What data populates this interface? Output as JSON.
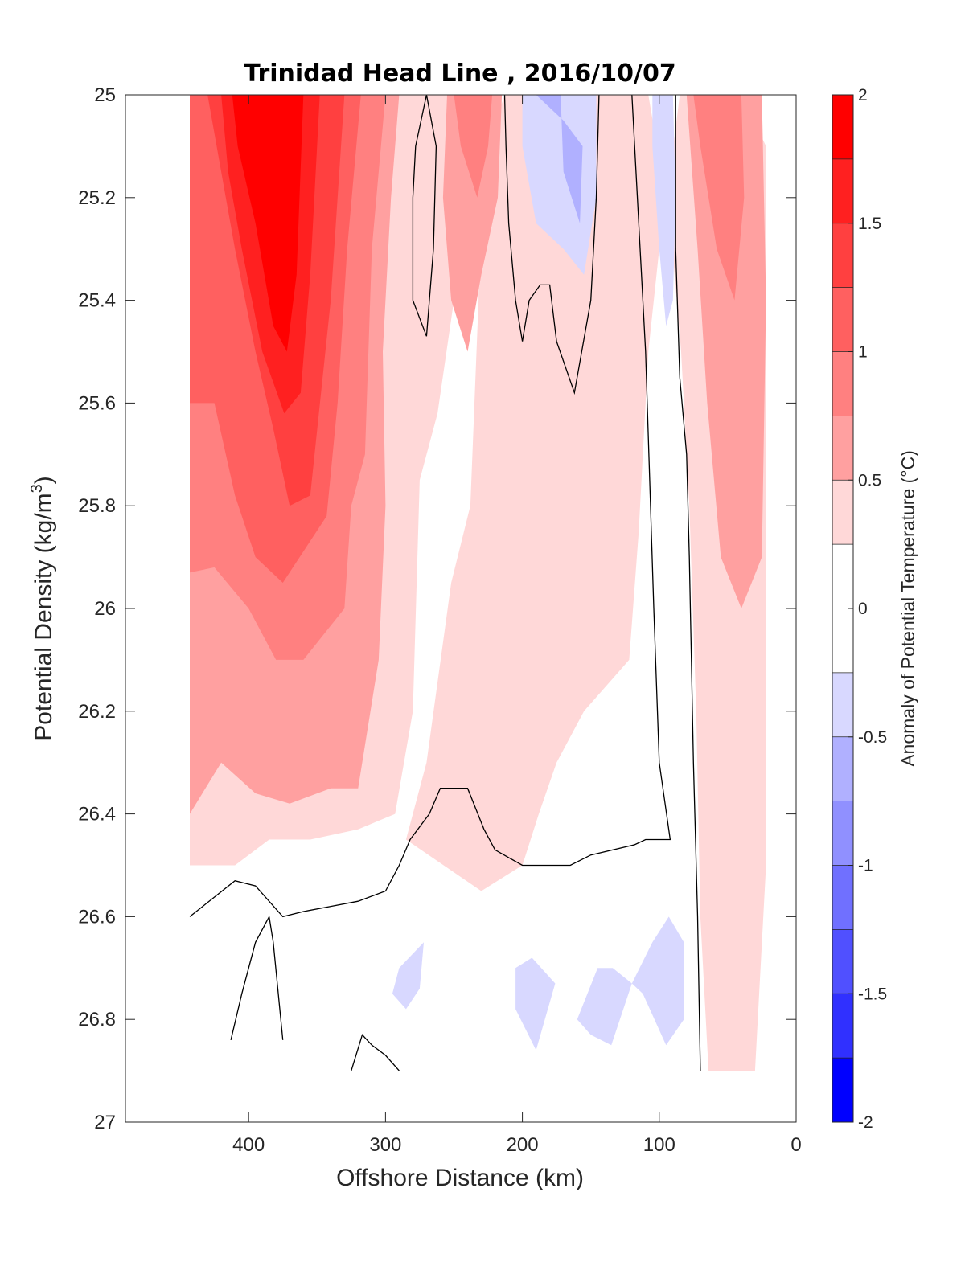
{
  "chart_data": {
    "type": "contour",
    "title": "Trinidad Head Line , 2016/10/07",
    "xlabel": "Offshore Distance (km)",
    "ylabel_main": "Potential Density (kg/m",
    "ylabel_sup": "3",
    "ylabel_close": ")",
    "xlim": [
      490,
      0
    ],
    "ylim": [
      27,
      25
    ],
    "x_ticks": [
      "400",
      "300",
      "200",
      "100",
      "0"
    ],
    "x_tick_values": [
      400,
      300,
      200,
      100,
      0
    ],
    "y_ticks": [
      "25",
      "25.2",
      "25.4",
      "25.6",
      "25.8",
      "26",
      "26.2",
      "26.4",
      "26.6",
      "26.8",
      "27"
    ],
    "y_tick_values": [
      25,
      25.2,
      25.4,
      25.6,
      25.8,
      26,
      26.2,
      26.4,
      26.6,
      26.8,
      27
    ],
    "colorbar": {
      "label": "Anomaly of Potential Temperature (°C)",
      "range": [
        -2,
        2
      ],
      "tick_labels": [
        "2",
        "1.5",
        "1",
        "0.5",
        "0",
        "-0.5",
        "-1",
        "-1.5",
        "-2"
      ],
      "tick_values": [
        2,
        1.5,
        1,
        0.5,
        0,
        -0.5,
        -1,
        -1.5,
        -2
      ],
      "levels": [
        {
          "from": 1.75,
          "to": 2.0,
          "color": "#ff0000"
        },
        {
          "from": 1.5,
          "to": 1.75,
          "color": "#ff2020"
        },
        {
          "from": 1.25,
          "to": 1.5,
          "color": "#ff4040"
        },
        {
          "from": 1.0,
          "to": 1.25,
          "color": "#ff6060"
        },
        {
          "from": 0.75,
          "to": 1.0,
          "color": "#ff8080"
        },
        {
          "from": 0.5,
          "to": 0.75,
          "color": "#ffa0a0"
        },
        {
          "from": 0.25,
          "to": 0.5,
          "color": "#ffd8d8"
        },
        {
          "from": -0.25,
          "to": 0.25,
          "color": "#ffffff"
        },
        {
          "from": -0.5,
          "to": -0.25,
          "color": "#d8d8ff"
        },
        {
          "from": -0.75,
          "to": -0.5,
          "color": "#b0b0ff"
        },
        {
          "from": -1.0,
          "to": -0.75,
          "color": "#9090ff"
        },
        {
          "from": -1.25,
          "to": -1.0,
          "color": "#7070ff"
        },
        {
          "from": -1.5,
          "to": -1.25,
          "color": "#5050ff"
        },
        {
          "from": -1.75,
          "to": -1.5,
          "color": "#3030ff"
        },
        {
          "from": -2.0,
          "to": -1.75,
          "color": "#0000ff"
        }
      ]
    },
    "grid": false,
    "filled_regions": [
      {
        "level": 0.25,
        "color": "#ffd8d8",
        "points": [
          [
            443,
            25
          ],
          [
            240,
            25
          ],
          [
            232,
            25.1
          ],
          [
            232,
            25.4
          ],
          [
            238,
            25.8
          ],
          [
            252,
            25.95
          ],
          [
            270,
            26.3
          ],
          [
            285,
            26.45
          ],
          [
            230,
            26.55
          ],
          [
            200,
            26.5
          ],
          [
            188,
            26.4
          ],
          [
            175,
            26.3
          ],
          [
            155,
            26.2
          ],
          [
            122,
            26.1
          ],
          [
            115,
            25.85
          ],
          [
            108,
            25.5
          ],
          [
            100,
            25.3
          ],
          [
            92,
            25.15
          ],
          [
            85,
            25
          ],
          [
            60,
            25
          ],
          [
            40,
            25
          ],
          [
            22,
            25.1
          ],
          [
            22,
            25.6
          ],
          [
            22,
            26.0
          ],
          [
            22,
            26.5
          ],
          [
            30,
            26.9
          ],
          [
            64,
            26.9
          ],
          [
            70,
            26.6
          ],
          [
            73,
            26.2
          ],
          [
            78,
            25.8
          ],
          [
            84,
            25.5
          ],
          [
            92,
            25.25
          ],
          [
            108,
            25
          ],
          [
            213,
            25
          ],
          [
            225,
            25.1
          ],
          [
            250,
            25.4
          ],
          [
            262,
            25.62
          ],
          [
            275,
            25.75
          ],
          [
            280,
            26.2
          ],
          [
            293,
            26.4
          ],
          [
            320,
            26.43
          ],
          [
            355,
            26.45
          ],
          [
            385,
            26.45
          ],
          [
            410,
            26.5
          ],
          [
            443,
            26.5
          ]
        ]
      },
      {
        "level": 0.5,
        "color": "#ffa0a0",
        "points": [
          [
            443,
            25
          ],
          [
            290,
            25
          ],
          [
            296,
            25.2
          ],
          [
            302,
            25.5
          ],
          [
            300,
            25.8
          ],
          [
            305,
            26.1
          ],
          [
            320,
            26.35
          ],
          [
            340,
            26.35
          ],
          [
            370,
            26.38
          ],
          [
            395,
            26.36
          ],
          [
            420,
            26.3
          ],
          [
            443,
            26.4
          ]
        ]
      },
      {
        "level": 0.5,
        "color": "#ffa0a0",
        "points": [
          [
            255,
            25
          ],
          [
            215,
            25
          ],
          [
            218,
            25.2
          ],
          [
            230,
            25.35
          ],
          [
            240,
            25.5
          ],
          [
            252,
            25.4
          ],
          [
            258,
            25.2
          ]
        ]
      },
      {
        "level": 0.5,
        "color": "#ffa0a0",
        "points": [
          [
            80,
            25
          ],
          [
            25,
            25
          ],
          [
            22,
            25.4
          ],
          [
            25,
            25.9
          ],
          [
            40,
            26.0
          ],
          [
            55,
            25.9
          ],
          [
            65,
            25.6
          ],
          [
            72,
            25.3
          ]
        ]
      },
      {
        "level": 0.75,
        "color": "#ff8080",
        "points": [
          [
            443,
            25
          ],
          [
            300,
            25
          ],
          [
            310,
            25.3
          ],
          [
            315,
            25.7
          ],
          [
            325,
            25.8
          ],
          [
            330,
            26.0
          ],
          [
            360,
            26.1
          ],
          [
            380,
            26.1
          ],
          [
            400,
            26.0
          ],
          [
            425,
            25.92
          ],
          [
            443,
            25.93
          ]
        ]
      },
      {
        "level": 0.75,
        "color": "#ff8080",
        "points": [
          [
            250,
            25
          ],
          [
            222,
            25
          ],
          [
            225,
            25.1
          ],
          [
            233,
            25.2
          ],
          [
            245,
            25.1
          ]
        ]
      },
      {
        "level": 0.75,
        "color": "#ff8080",
        "points": [
          [
            75,
            25
          ],
          [
            40,
            25
          ],
          [
            38,
            25.2
          ],
          [
            45,
            25.4
          ],
          [
            58,
            25.3
          ],
          [
            70,
            25.1
          ]
        ]
      },
      {
        "level": 1.0,
        "color": "#ff6060",
        "points": [
          [
            443,
            25
          ],
          [
            318,
            25
          ],
          [
            328,
            25.3
          ],
          [
            335,
            25.6
          ],
          [
            343,
            25.82
          ],
          [
            375,
            25.95
          ],
          [
            395,
            25.9
          ],
          [
            410,
            25.78
          ],
          [
            425,
            25.6
          ],
          [
            443,
            25.6
          ]
        ]
      },
      {
        "level": 1.25,
        "color": "#ff4040",
        "points": [
          [
            430,
            25
          ],
          [
            330,
            25
          ],
          [
            340,
            25.4
          ],
          [
            355,
            25.78
          ],
          [
            370,
            25.8
          ],
          [
            382,
            25.65
          ],
          [
            395,
            25.5
          ],
          [
            410,
            25.3
          ],
          [
            420,
            25.15
          ]
        ]
      },
      {
        "level": 1.5,
        "color": "#ff2020",
        "points": [
          [
            420,
            25
          ],
          [
            348,
            25
          ],
          [
            355,
            25.35
          ],
          [
            362,
            25.58
          ],
          [
            374,
            25.62
          ],
          [
            390,
            25.5
          ],
          [
            405,
            25.3
          ],
          [
            415,
            25.15
          ]
        ]
      },
      {
        "level": 1.75,
        "color": "#ff0000",
        "points": [
          [
            412,
            25
          ],
          [
            360,
            25
          ],
          [
            365,
            25.35
          ],
          [
            372,
            25.5
          ],
          [
            382,
            25.45
          ],
          [
            395,
            25.25
          ],
          [
            408,
            25.1
          ]
        ]
      },
      {
        "level": -0.25,
        "color": "#d8d8ff",
        "points": [
          [
            200,
            25
          ],
          [
            146,
            25
          ],
          [
            146,
            25.2
          ],
          [
            155,
            25.35
          ],
          [
            170,
            25.3
          ],
          [
            190,
            25.25
          ],
          [
            200,
            25.1
          ]
        ]
      },
      {
        "level": -0.5,
        "color": "#b0b0ff",
        "points": [
          [
            190,
            25
          ],
          [
            172,
            25
          ],
          [
            170,
            25.15
          ],
          [
            158,
            25.25
          ],
          [
            156,
            25.1
          ],
          [
            170,
            25.05
          ]
        ]
      },
      {
        "level": -0.25,
        "color": "#d8d8ff",
        "points": [
          [
            105,
            25
          ],
          [
            90,
            25
          ],
          [
            88,
            25.2
          ],
          [
            90,
            25.4
          ],
          [
            95,
            25.45
          ],
          [
            100,
            25.3
          ],
          [
            105,
            25.1
          ]
        ]
      },
      {
        "level": -0.25,
        "color": "#d8d8ff",
        "points": [
          [
            272,
            26.65
          ],
          [
            290,
            26.7
          ],
          [
            295,
            26.75
          ],
          [
            285,
            26.78
          ],
          [
            275,
            26.74
          ]
        ]
      },
      {
        "level": -0.25,
        "color": "#d8d8ff",
        "points": [
          [
            205,
            26.7
          ],
          [
            193,
            26.68
          ],
          [
            176,
            26.73
          ],
          [
            190,
            26.86
          ],
          [
            205,
            26.78
          ]
        ]
      },
      {
        "level": -0.25,
        "color": "#d8d8ff",
        "points": [
          [
            160,
            26.8
          ],
          [
            145,
            26.7
          ],
          [
            134,
            26.7
          ],
          [
            120,
            26.73
          ],
          [
            135,
            26.85
          ],
          [
            150,
            26.83
          ]
        ]
      },
      {
        "level": -0.25,
        "color": "#d8d8ff",
        "points": [
          [
            120,
            26.73
          ],
          [
            105,
            26.65
          ],
          [
            93,
            26.6
          ],
          [
            82,
            26.65
          ],
          [
            82,
            26.8
          ],
          [
            95,
            26.85
          ],
          [
            112,
            26.75
          ]
        ]
      }
    ],
    "contour_lines": [
      {
        "level": 0,
        "points": [
          [
            270,
            25
          ],
          [
            278,
            25.1
          ],
          [
            280,
            25.2
          ],
          [
            280,
            25.4
          ],
          [
            270,
            25.47
          ],
          [
            265,
            25.3
          ],
          [
            263,
            25.1
          ],
          [
            270,
            25
          ]
        ]
      },
      {
        "level": 0,
        "points": [
          [
            213,
            25
          ],
          [
            212,
            25.1
          ],
          [
            210,
            25.25
          ],
          [
            205,
            25.4
          ],
          [
            200,
            25.48
          ],
          [
            195,
            25.4
          ],
          [
            187,
            25.37
          ],
          [
            180,
            25.37
          ],
          [
            175,
            25.48
          ],
          [
            162,
            25.58
          ],
          [
            150,
            25.4
          ],
          [
            146,
            25.2
          ],
          [
            144,
            25
          ]
        ]
      },
      {
        "level": 0,
        "points": [
          [
            120,
            25
          ],
          [
            116,
            25.2
          ],
          [
            110,
            25.5
          ],
          [
            107,
            25.75
          ],
          [
            104,
            26.0
          ],
          [
            100,
            26.3
          ],
          [
            92,
            26.45
          ],
          [
            110,
            26.45
          ],
          [
            118,
            26.46
          ],
          [
            150,
            26.48
          ],
          [
            165,
            26.5
          ],
          [
            188,
            26.5
          ],
          [
            200,
            26.5
          ],
          [
            220,
            26.47
          ],
          [
            228,
            26.43
          ],
          [
            240,
            26.35
          ],
          [
            260,
            26.35
          ],
          [
            268,
            26.4
          ],
          [
            282,
            26.45
          ],
          [
            290,
            26.5
          ],
          [
            300,
            26.55
          ],
          [
            320,
            26.57
          ],
          [
            340,
            26.58
          ],
          [
            360,
            26.59
          ],
          [
            375,
            26.6
          ],
          [
            395,
            26.54
          ],
          [
            410,
            26.53
          ],
          [
            443,
            26.6
          ]
        ]
      },
      {
        "level": 0,
        "points": [
          [
            88,
            25
          ],
          [
            88,
            25.3
          ],
          [
            85,
            25.55
          ],
          [
            80,
            25.7
          ],
          [
            78,
            25.9
          ],
          [
            75,
            26.3
          ],
          [
            72,
            26.6
          ],
          [
            70,
            26.9
          ]
        ]
      },
      {
        "level": 0,
        "points": [
          [
            385,
            26.6
          ],
          [
            382,
            26.65
          ],
          [
            375,
            26.84
          ]
        ]
      },
      {
        "level": 0,
        "points": [
          [
            385,
            26.6
          ],
          [
            395,
            26.65
          ],
          [
            405,
            26.75
          ],
          [
            413,
            26.84
          ]
        ]
      },
      {
        "level": 0,
        "points": [
          [
            325,
            26.9
          ],
          [
            317,
            26.83
          ],
          [
            310,
            26.85
          ],
          [
            300,
            26.87
          ],
          [
            290,
            26.9
          ]
        ]
      }
    ]
  }
}
